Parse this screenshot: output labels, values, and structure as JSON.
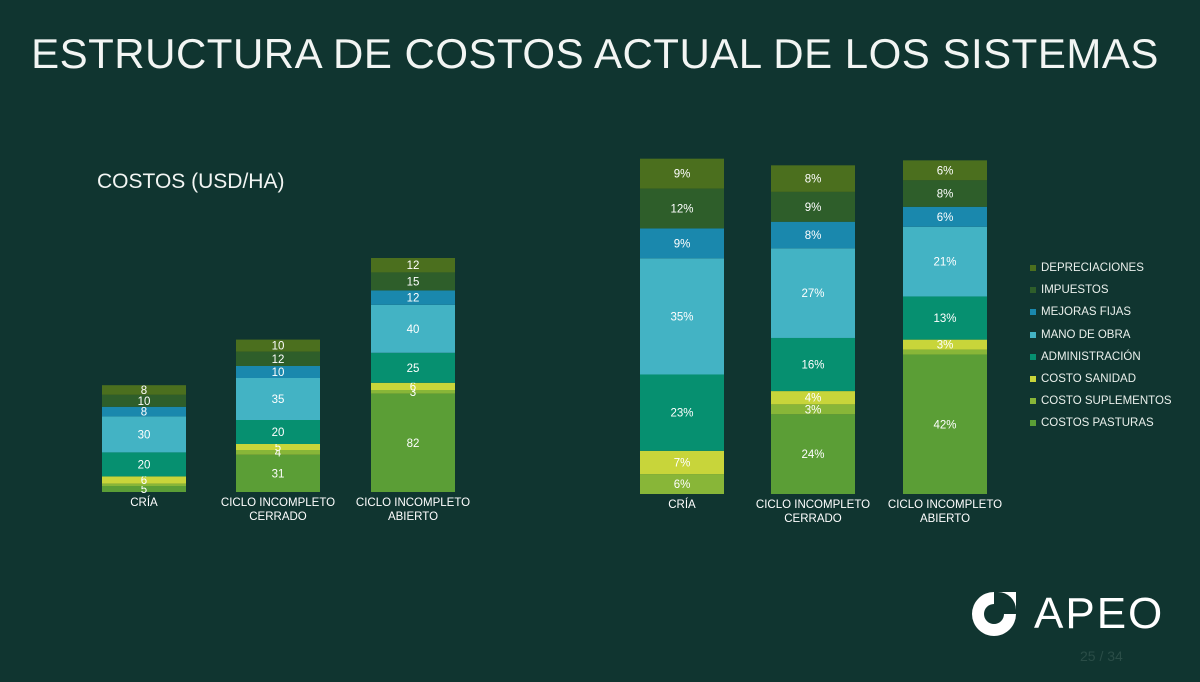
{
  "title": "ESTRUCTURA DE COSTOS ACTUAL DE LOS SISTEMAS",
  "subtitle": "COSTOS (USD/HA)",
  "legend": {
    "items": [
      {
        "label": "DEPRECIACIONES",
        "color": "#4b6f1e"
      },
      {
        "label": "IMPUESTOS",
        "color": "#2e5e2a"
      },
      {
        "label": "MEJORAS FIJAS",
        "color": "#1a88ad"
      },
      {
        "label": "MANO DE OBRA",
        "color": "#43b3c4"
      },
      {
        "label": "ADMINISTRACIÓN",
        "color": "#069070"
      },
      {
        "label": "COSTO SANIDAD",
        "color": "#c8d53a"
      },
      {
        "label": "COSTO SUPLEMENTOS",
        "color": "#88b638"
      },
      {
        "label": "COSTOS PASTURAS",
        "color": "#5b9e36"
      }
    ]
  },
  "chart_data": [
    {
      "type": "bar",
      "stacked": true,
      "title": "COSTOS (USD/HA)",
      "categories": [
        "CRÍA",
        "CICLO INCOMPLETO\nCERRADO",
        "CICLO INCOMPLETO\nABIERTO"
      ],
      "series": [
        {
          "name": "COSTOS PASTURAS",
          "values": [
            5,
            31,
            82
          ]
        },
        {
          "name": "COSTO SUPLEMENTOS",
          "values": [
            2,
            4,
            3
          ]
        },
        {
          "name": "COSTO SANIDAD",
          "values": [
            6,
            5,
            6
          ]
        },
        {
          "name": "ADMINISTRACIÓN",
          "values": [
            20,
            20,
            25
          ]
        },
        {
          "name": "MANO DE OBRA",
          "values": [
            30,
            35,
            40
          ]
        },
        {
          "name": "MEJORAS FIJAS",
          "values": [
            8,
            10,
            12
          ]
        },
        {
          "name": "IMPUESTOS",
          "values": [
            10,
            12,
            15
          ]
        },
        {
          "name": "DEPRECIACIONES",
          "values": [
            8,
            10,
            12
          ]
        }
      ],
      "labels": [
        [
          "5",
          "",
          "6",
          "20",
          "30",
          "8",
          "10",
          "8"
        ],
        [
          "31",
          "4",
          "5",
          "20",
          "35",
          "10",
          "12",
          "10"
        ],
        [
          "82",
          "3",
          "6",
          "25",
          "40",
          "12",
          "15",
          "12"
        ]
      ]
    },
    {
      "type": "bar",
      "stacked": true,
      "percent": true,
      "categories": [
        "CRÍA",
        "CICLO INCOMPLETO\nCERRADO",
        "CICLO INCOMPLETO\nABIERTO"
      ],
      "series": [
        {
          "name": "COSTOS PASTURAS",
          "values": [
            0,
            24,
            42
          ]
        },
        {
          "name": "COSTO SUPLEMENTOS",
          "values": [
            6,
            3,
            1.5
          ]
        },
        {
          "name": "COSTO SANIDAD",
          "values": [
            7,
            4,
            3
          ]
        },
        {
          "name": "ADMINISTRACIÓN",
          "values": [
            23,
            16,
            13
          ]
        },
        {
          "name": "MANO DE OBRA",
          "values": [
            35,
            27,
            21
          ]
        },
        {
          "name": "MEJORAS FIJAS",
          "values": [
            9,
            8,
            6
          ]
        },
        {
          "name": "IMPUESTOS",
          "values": [
            12,
            9,
            8
          ]
        },
        {
          "name": "DEPRECIACIONES",
          "values": [
            9,
            8,
            6
          ]
        }
      ],
      "labels": [
        [
          "",
          "6%",
          "7%",
          "23%",
          "35%",
          "9%",
          "12%",
          "9%"
        ],
        [
          "24%",
          "3%",
          "4%",
          "16%",
          "27%",
          "8%",
          "9%",
          "8%"
        ],
        [
          "42%",
          "",
          "3%",
          "13%",
          "21%",
          "6%",
          "8%",
          "6%"
        ]
      ]
    }
  ],
  "logo": {
    "text": "APEO"
  },
  "page_number": "25 / 34"
}
